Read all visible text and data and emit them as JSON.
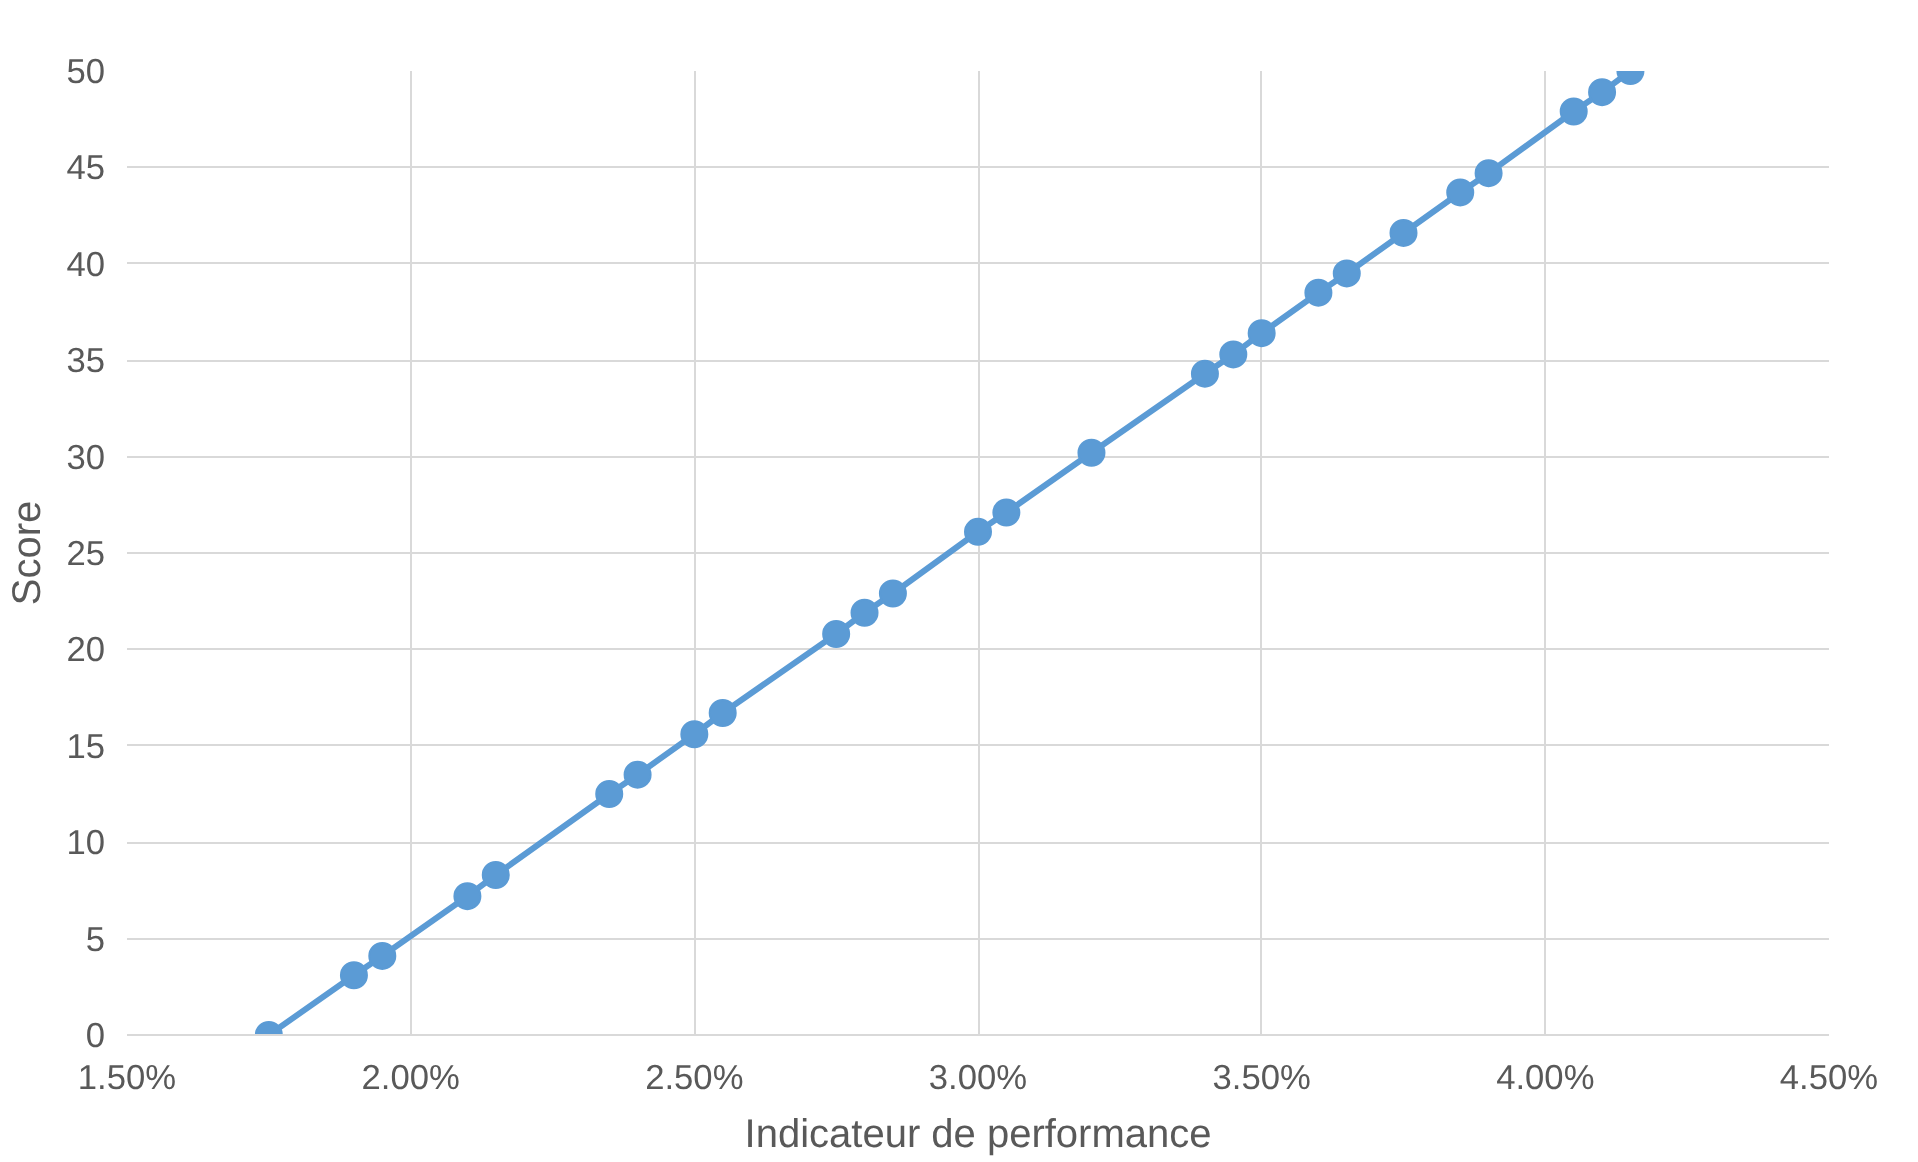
{
  "chart_data": {
    "type": "line",
    "xlabel": "Indicateur de performance",
    "ylabel": "Score",
    "x": [
      1.75,
      1.9,
      1.95,
      2.1,
      2.15,
      2.35,
      2.4,
      2.5,
      2.55,
      2.75,
      2.8,
      2.85,
      3.0,
      3.05,
      3.2,
      3.4,
      3.45,
      3.5,
      3.6,
      3.65,
      3.75,
      3.85,
      3.9,
      4.05,
      4.1,
      4.15
    ],
    "series": [
      {
        "color": "#5b9bd5",
        "values": [
          0,
          3.1,
          4.1,
          7.2,
          8.3,
          12.5,
          13.5,
          15.6,
          16.7,
          20.8,
          21.9,
          22.9,
          26.1,
          27.1,
          30.2,
          34.3,
          35.3,
          36.4,
          38.5,
          39.5,
          41.6,
          43.7,
          44.7,
          47.9,
          48.9,
          50
        ]
      }
    ],
    "xlim": [
      1.5,
      4.5
    ],
    "xticks": [
      {
        "value": 1.5,
        "label": "1.50%"
      },
      {
        "value": 2.0,
        "label": "2.00%"
      },
      {
        "value": 2.5,
        "label": "2.50%"
      },
      {
        "value": 3.0,
        "label": "3.00%"
      },
      {
        "value": 3.5,
        "label": "3.50%"
      },
      {
        "value": 4.0,
        "label": "4.00%"
      },
      {
        "value": 4.5,
        "label": "4.50%"
      }
    ],
    "ylim": [
      0,
      50
    ],
    "yticks": [
      0,
      5,
      10,
      15,
      20,
      25,
      30,
      35,
      40,
      45,
      50
    ],
    "grid": true,
    "marker": "circle",
    "line_style": "solid"
  }
}
